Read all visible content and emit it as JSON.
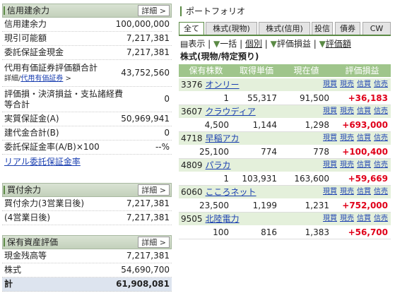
{
  "margin_panel": {
    "title": "信用建余力",
    "detail": "詳細",
    "rows": [
      {
        "label": "信用建余力",
        "value": "100,000,000"
      },
      {
        "label": "現引可能額",
        "value": "7,217,381"
      },
      {
        "label": "委託保証金現金",
        "value": "7,217,381"
      },
      {
        "label": "代用有価証券評価額合計",
        "value": "43,752,560"
      },
      {
        "label": "評価損・決済損益・支払諸経費等合計",
        "value": "0"
      },
      {
        "label": "実質保証金(A)",
        "value": "50,969,941"
      },
      {
        "label": "建代金合計(B)",
        "value": "0"
      },
      {
        "label": "委託保証金率(A/B)×100",
        "value": "--%"
      }
    ],
    "sub_link_a": "詳細",
    "sub_link_b": "代用有価証券",
    "link": "リアル委託保証金率"
  },
  "buying_panel": {
    "title": "買付余力",
    "detail": "詳細",
    "rows": [
      {
        "label": "買付余力(3営業日後)",
        "value": "7,217,381"
      },
      {
        "label": "(4営業日後)",
        "value": "7,217,381"
      }
    ]
  },
  "assets_panel": {
    "title": "保有資産評価",
    "detail": "詳細",
    "rows": [
      {
        "label": "現金残高等",
        "value": "7,217,381"
      },
      {
        "label": "株式",
        "value": "54,690,700"
      },
      {
        "label": "計",
        "value": "61,908,081"
      }
    ]
  },
  "portfolio": {
    "title": "ポートフォリオ",
    "tabs": [
      "全て",
      "株式(現物)",
      "株式(信用)",
      "投信",
      "債券",
      "CW"
    ],
    "toolbar": [
      "表示",
      "一括",
      "個別",
      "評価損益",
      "評価額"
    ],
    "section": "株式(現物/特定預り)",
    "columns": [
      "保有株数",
      "取得単価",
      "現在値",
      "評価損益"
    ],
    "actions": [
      "現買",
      "現売",
      "信買",
      "信売"
    ],
    "holdings": [
      {
        "code": "3376",
        "name": "オンリー",
        "shares": "1",
        "cost": "55,317",
        "price": "91,500",
        "gain": "+36,183"
      },
      {
        "code": "3607",
        "name": "クラウディア",
        "shares": "4,500",
        "cost": "1,144",
        "price": "1,298",
        "gain": "+693,000"
      },
      {
        "code": "4718",
        "name": "早稲アカ",
        "shares": "25,100",
        "cost": "774",
        "price": "778",
        "gain": "+100,400"
      },
      {
        "code": "4809",
        "name": "パラカ",
        "shares": "1",
        "cost": "103,931",
        "price": "163,600",
        "gain": "+59,669"
      },
      {
        "code": "6060",
        "name": "こころネット",
        "shares": "23,500",
        "cost": "1,199",
        "price": "1,231",
        "gain": "+752,000"
      },
      {
        "code": "9505",
        "name": "北陸電力",
        "shares": "100",
        "cost": "816",
        "price": "1,383",
        "gain": "+56,700"
      }
    ]
  }
}
